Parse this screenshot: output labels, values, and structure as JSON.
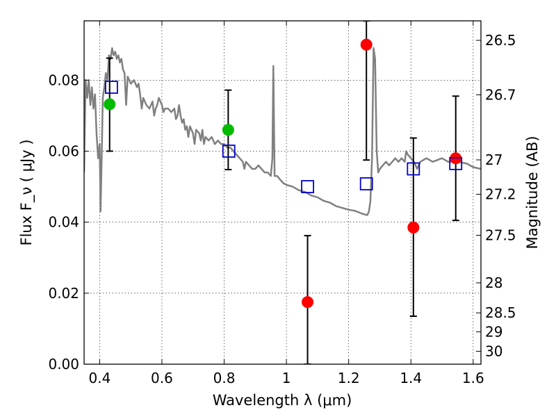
{
  "chart_data": {
    "type": "scatter",
    "xlabel": "Wavelength  λ (μm)",
    "ylabel": "Flux  F_ν  ( μJy )",
    "y2label": "Magnitude (AB)",
    "xlim": [
      0.35,
      1.625
    ],
    "ylim": [
      0.0,
      0.0967
    ],
    "x_ticks": [
      0.4,
      0.6,
      0.8,
      1.0,
      1.2,
      1.4,
      1.6
    ],
    "x_tick_labels": [
      "0.4",
      "0.6",
      "0.8",
      "1",
      "1.2",
      "1.4",
      "1.6"
    ],
    "y_ticks": [
      0.0,
      0.02,
      0.04,
      0.06,
      0.08
    ],
    "y_tick_labels": [
      "0.00",
      "0.02",
      "0.04",
      "0.06",
      "0.08"
    ],
    "y2_ticks": [
      26.5,
      26.7,
      27,
      27.2,
      27.5,
      28,
      28.5,
      29,
      30
    ],
    "y2_tick_labels": [
      "26.5",
      "26.7",
      "27",
      "27.2",
      "27.5",
      "28",
      "28.5",
      "29",
      "30"
    ],
    "grid": true,
    "series": [
      {
        "kind": "model-spectrum",
        "color": "#808080",
        "points": [
          [
            0.35,
            0.054
          ],
          [
            0.355,
            0.08
          ],
          [
            0.36,
            0.075
          ],
          [
            0.365,
            0.08
          ],
          [
            0.37,
            0.073
          ],
          [
            0.375,
            0.078
          ],
          [
            0.38,
            0.072
          ],
          [
            0.385,
            0.076
          ],
          [
            0.39,
            0.065
          ],
          [
            0.395,
            0.058
          ],
          [
            0.4,
            0.062
          ],
          [
            0.403,
            0.043
          ],
          [
            0.407,
            0.06
          ],
          [
            0.41,
            0.075
          ],
          [
            0.415,
            0.078
          ],
          [
            0.42,
            0.082
          ],
          [
            0.425,
            0.08
          ],
          [
            0.43,
            0.087
          ],
          [
            0.435,
            0.086
          ],
          [
            0.44,
            0.089
          ],
          [
            0.445,
            0.087
          ],
          [
            0.45,
            0.088
          ],
          [
            0.455,
            0.086
          ],
          [
            0.46,
            0.087
          ],
          [
            0.465,
            0.085
          ],
          [
            0.47,
            0.086
          ],
          [
            0.475,
            0.083
          ],
          [
            0.48,
            0.082
          ],
          [
            0.485,
            0.073
          ],
          [
            0.49,
            0.081
          ],
          [
            0.5,
            0.079
          ],
          [
            0.51,
            0.08
          ],
          [
            0.52,
            0.078
          ],
          [
            0.525,
            0.079
          ],
          [
            0.53,
            0.076
          ],
          [
            0.535,
            0.072
          ],
          [
            0.54,
            0.075
          ],
          [
            0.55,
            0.073
          ],
          [
            0.56,
            0.072
          ],
          [
            0.57,
            0.074
          ],
          [
            0.575,
            0.07
          ],
          [
            0.58,
            0.072
          ],
          [
            0.585,
            0.073
          ],
          [
            0.59,
            0.075
          ],
          [
            0.6,
            0.073
          ],
          [
            0.605,
            0.071
          ],
          [
            0.61,
            0.072
          ],
          [
            0.62,
            0.072
          ],
          [
            0.63,
            0.071
          ],
          [
            0.64,
            0.072
          ],
          [
            0.645,
            0.069
          ],
          [
            0.65,
            0.07
          ],
          [
            0.655,
            0.073
          ],
          [
            0.66,
            0.07
          ],
          [
            0.665,
            0.068
          ],
          [
            0.67,
            0.069
          ],
          [
            0.675,
            0.066
          ],
          [
            0.68,
            0.067
          ],
          [
            0.685,
            0.064
          ],
          [
            0.69,
            0.067
          ],
          [
            0.7,
            0.065
          ],
          [
            0.705,
            0.062
          ],
          [
            0.71,
            0.066
          ],
          [
            0.72,
            0.065
          ],
          [
            0.725,
            0.063
          ],
          [
            0.73,
            0.066
          ],
          [
            0.735,
            0.062
          ],
          [
            0.74,
            0.064
          ],
          [
            0.75,
            0.063
          ],
          [
            0.76,
            0.064
          ],
          [
            0.77,
            0.062
          ],
          [
            0.78,
            0.063
          ],
          [
            0.79,
            0.062
          ],
          [
            0.8,
            0.062
          ],
          [
            0.81,
            0.061
          ],
          [
            0.82,
            0.061
          ],
          [
            0.83,
            0.06
          ],
          [
            0.84,
            0.059
          ],
          [
            0.85,
            0.058
          ],
          [
            0.86,
            0.057
          ],
          [
            0.865,
            0.055
          ],
          [
            0.87,
            0.057
          ],
          [
            0.88,
            0.056
          ],
          [
            0.89,
            0.055
          ],
          [
            0.9,
            0.055
          ],
          [
            0.91,
            0.056
          ],
          [
            0.92,
            0.055
          ],
          [
            0.93,
            0.054
          ],
          [
            0.94,
            0.054
          ],
          [
            0.95,
            0.053
          ],
          [
            0.955,
            0.058
          ],
          [
            0.958,
            0.084
          ],
          [
            0.962,
            0.053
          ],
          [
            0.97,
            0.053
          ],
          [
            0.98,
            0.052
          ],
          [
            0.99,
            0.051
          ],
          [
            1.0,
            0.0505
          ],
          [
            1.02,
            0.05
          ],
          [
            1.04,
            0.049
          ],
          [
            1.06,
            0.0485
          ],
          [
            1.08,
            0.0475
          ],
          [
            1.1,
            0.047
          ],
          [
            1.12,
            0.046
          ],
          [
            1.14,
            0.0455
          ],
          [
            1.16,
            0.0445
          ],
          [
            1.18,
            0.044
          ],
          [
            1.2,
            0.0435
          ],
          [
            1.22,
            0.0432
          ],
          [
            1.24,
            0.0425
          ],
          [
            1.25,
            0.0422
          ],
          [
            1.26,
            0.042
          ],
          [
            1.265,
            0.043
          ],
          [
            1.27,
            0.046
          ],
          [
            1.275,
            0.058
          ],
          [
            1.28,
            0.089
          ],
          [
            1.285,
            0.086
          ],
          [
            1.29,
            0.06
          ],
          [
            1.295,
            0.054
          ],
          [
            1.3,
            0.055
          ],
          [
            1.31,
            0.056
          ],
          [
            1.32,
            0.057
          ],
          [
            1.33,
            0.056
          ],
          [
            1.34,
            0.057
          ],
          [
            1.35,
            0.058
          ],
          [
            1.36,
            0.057
          ],
          [
            1.37,
            0.058
          ],
          [
            1.38,
            0.057
          ],
          [
            1.385,
            0.06
          ],
          [
            1.39,
            0.059
          ],
          [
            1.4,
            0.058
          ],
          [
            1.41,
            0.057
          ],
          [
            1.42,
            0.055
          ],
          [
            1.43,
            0.057
          ],
          [
            1.45,
            0.058
          ],
          [
            1.47,
            0.057
          ],
          [
            1.5,
            0.058
          ],
          [
            1.52,
            0.057
          ],
          [
            1.55,
            0.057
          ],
          [
            1.58,
            0.0565
          ],
          [
            1.6,
            0.0555
          ],
          [
            1.625,
            0.055
          ]
        ]
      },
      {
        "kind": "observed-photometry-green",
        "color": "#00bb00",
        "points": [
          [
            0.432,
            0.0732
          ],
          [
            0.813,
            0.066
          ]
        ]
      },
      {
        "kind": "observed-photometry-red",
        "color": "#ff0000",
        "points": [
          [
            1.068,
            0.0175
          ],
          [
            1.257,
            0.09
          ],
          [
            1.408,
            0.0385
          ],
          [
            1.544,
            0.058
          ]
        ]
      },
      {
        "kind": "model-photometry",
        "color": "#0000cc",
        "points": [
          [
            0.438,
            0.078
          ],
          [
            0.815,
            0.06
          ],
          [
            1.068,
            0.05
          ],
          [
            1.257,
            0.0508
          ],
          [
            1.408,
            0.055
          ],
          [
            1.544,
            0.0565
          ]
        ]
      }
    ],
    "error_bars": [
      {
        "x": 0.432,
        "y_low": 0.06,
        "y_high": 0.0862
      },
      {
        "x": 0.813,
        "y_low": 0.0548,
        "y_high": 0.0772
      },
      {
        "x": 1.068,
        "y_low": 0.0,
        "y_high": 0.0362
      },
      {
        "x": 1.257,
        "y_low": 0.0575,
        "y_high": 0.0967
      },
      {
        "x": 1.408,
        "y_low": 0.0135,
        "y_high": 0.0637
      },
      {
        "x": 1.544,
        "y_low": 0.0405,
        "y_high": 0.0755
      }
    ]
  }
}
